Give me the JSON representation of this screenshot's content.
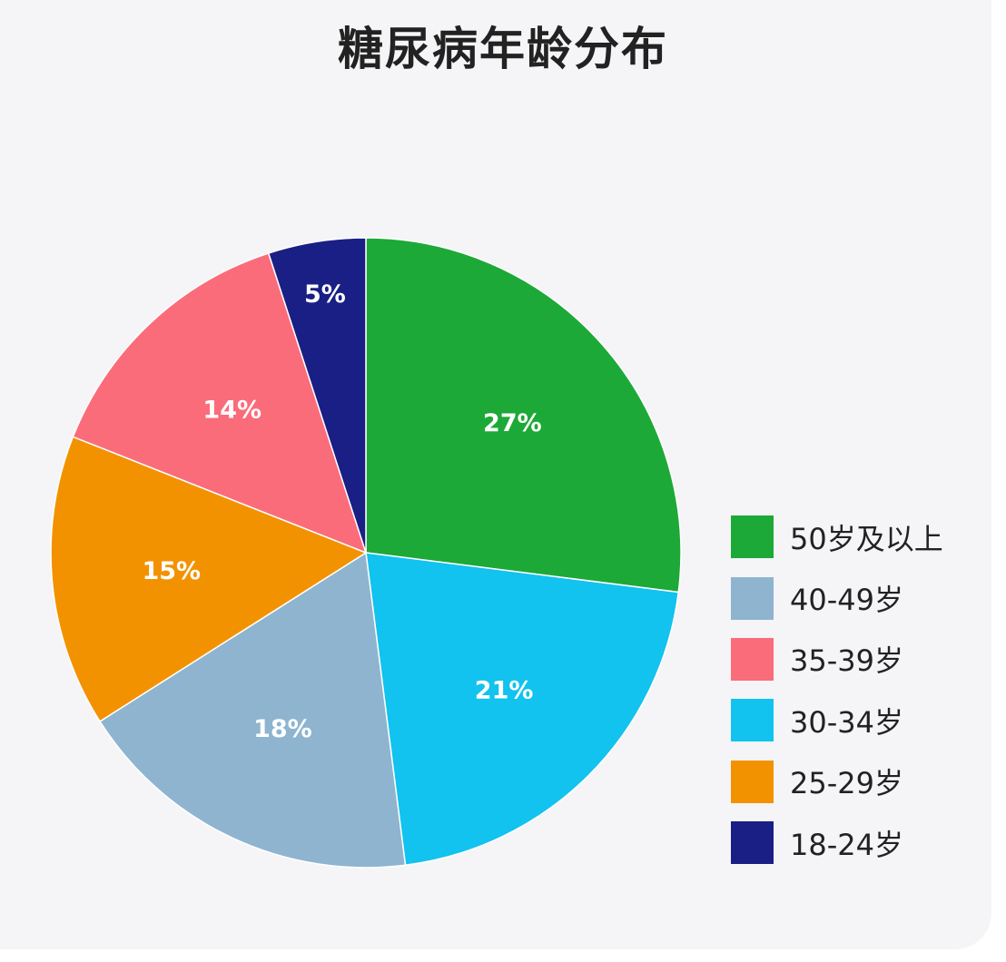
{
  "chart_data": {
    "type": "pie",
    "title": "糖尿病年龄分布",
    "legend_position": "right",
    "slices": [
      {
        "label": "50岁及以上",
        "value": 27,
        "display": "27%",
        "color": "#1da937"
      },
      {
        "label": "30-34岁",
        "value": 21,
        "display": "21%",
        "color": "#12c2ef"
      },
      {
        "label": "40-49岁",
        "value": 18,
        "display": "18%",
        "color": "#8eb4d0"
      },
      {
        "label": "25-29岁",
        "value": 15,
        "display": "15%",
        "color": "#f39200"
      },
      {
        "label": "35-39岁",
        "value": 14,
        "display": "14%",
        "color": "#fb6c7a"
      },
      {
        "label": "18-24岁",
        "value": 5,
        "display": "5%",
        "color": "#1a1f85"
      }
    ],
    "legend": [
      {
        "label": "50岁及以上",
        "color": "#1da937"
      },
      {
        "label": "40-49岁",
        "color": "#8eb4d0"
      },
      {
        "label": "35-39岁",
        "color": "#fb6c7a"
      },
      {
        "label": "30-34岁",
        "color": "#12c2ef"
      },
      {
        "label": "25-29岁",
        "color": "#f39200"
      },
      {
        "label": "18-24岁",
        "color": "#1a1f85"
      }
    ]
  }
}
